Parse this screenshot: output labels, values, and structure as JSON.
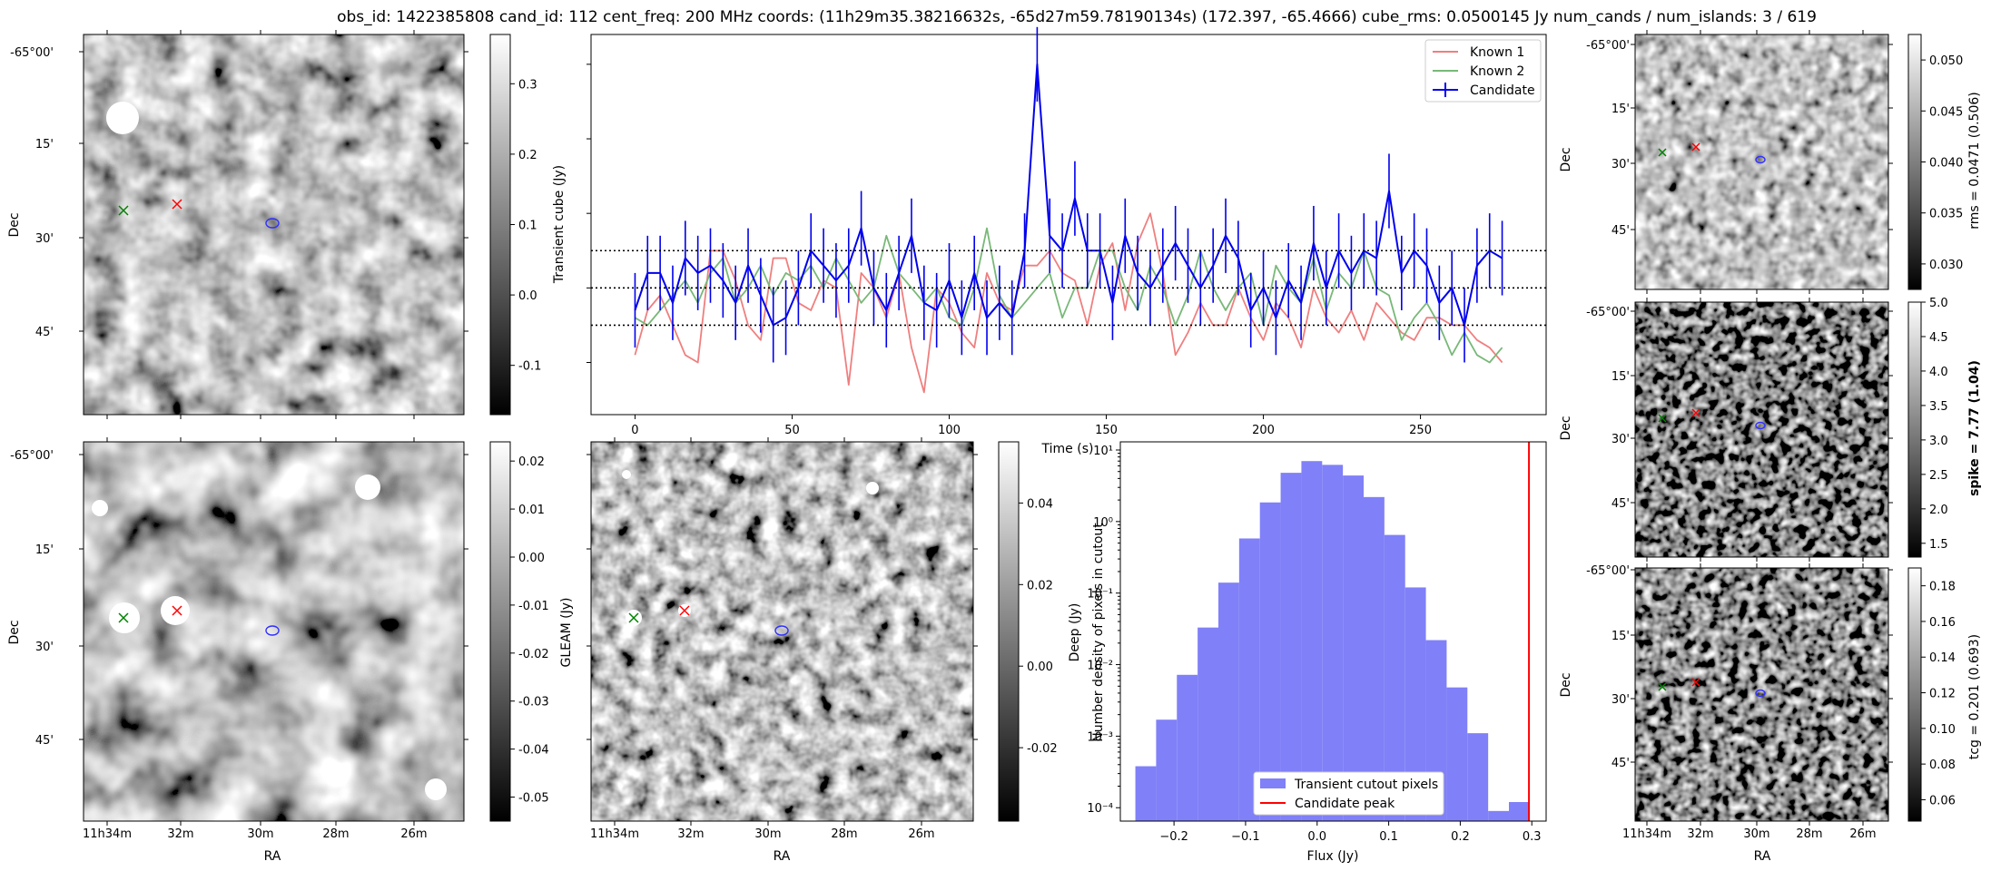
{
  "title": "obs_id: 1422385808 cand_id: 112 cent_freq: 200 MHz coords: (11h29m35.38216632s, -65d27m59.78190134s) (172.397, -65.4666) cube_rms: 0.0500145 Jy num_cands / num_islands: 3 / 619",
  "colors": {
    "known1": "#ef7f7f",
    "known2": "#78b878",
    "candidate": "#0000ee",
    "hist": "#8080f8",
    "peak": "#ff0000"
  },
  "sky_axes": {
    "dec_ticks": [
      "-65°00'",
      "15'",
      "30'",
      "45'"
    ],
    "ra_ticks": [
      "11h34m",
      "32m",
      "30m",
      "28m",
      "26m"
    ],
    "xlabel": "RA",
    "ylabel": "Dec"
  },
  "images": [
    {
      "name": "transient-cube-image",
      "cbar_label": "Transient cube (Jy)",
      "cbar_ticks": [
        "0.3",
        "0.2",
        "0.1",
        "0.0",
        "-0.1"
      ],
      "cbar_values": [
        0.3,
        0.2,
        0.1,
        0.0,
        -0.1
      ],
      "cbar_range": [
        -0.17,
        0.37
      ],
      "bold": false
    },
    {
      "name": "gleam-image",
      "cbar_label": "GLEAM (Jy)",
      "cbar_ticks": [
        "0.02",
        "0.01",
        "0.00",
        "-0.01",
        "-0.02",
        "-0.03",
        "-0.04",
        "-0.05"
      ],
      "cbar_values": [
        0.02,
        0.01,
        0.0,
        -0.01,
        -0.02,
        -0.03,
        -0.04,
        -0.05
      ],
      "cbar_range": [
        -0.055,
        0.024
      ],
      "bold": false
    },
    {
      "name": "deep-image",
      "cbar_label": "Deep (Jy)",
      "cbar_ticks": [
        "0.04",
        "0.02",
        "0.00",
        "-0.02"
      ],
      "cbar_values": [
        0.04,
        0.02,
        0.0,
        -0.02
      ],
      "cbar_range": [
        -0.038,
        0.055
      ],
      "bold": false
    },
    {
      "name": "rms-image",
      "cbar_label": "rms = 0.0471 (0.506)",
      "cbar_ticks": [
        "0.050",
        "0.045",
        "0.040",
        "0.035",
        "0.030"
      ],
      "cbar_values": [
        0.05,
        0.045,
        0.04,
        0.035,
        0.03
      ],
      "cbar_range": [
        0.0275,
        0.0525
      ],
      "bold": false
    },
    {
      "name": "spike-image",
      "cbar_label": "spike = 7.77 (1.04)",
      "cbar_ticks": [
        "5.0",
        "4.5",
        "4.0",
        "3.5",
        "3.0",
        "2.5",
        "2.0",
        "1.5"
      ],
      "cbar_values": [
        5.0,
        4.5,
        4.0,
        3.5,
        3.0,
        2.5,
        2.0,
        1.5
      ],
      "cbar_range": [
        1.3,
        5.0
      ],
      "bold": true
    },
    {
      "name": "tcg-image",
      "cbar_label": "tcg = 0.201 (0.693)",
      "cbar_ticks": [
        "0.18",
        "0.16",
        "0.14",
        "0.12",
        "0.10",
        "0.08",
        "0.06"
      ],
      "cbar_values": [
        0.18,
        0.16,
        0.14,
        0.12,
        0.1,
        0.08,
        0.06
      ],
      "cbar_range": [
        0.048,
        0.19
      ],
      "bold": false
    }
  ],
  "chart_data": [
    {
      "type": "line",
      "name": "lightcurve",
      "xlabel": "Time (s)",
      "ylabel": "",
      "xlim": [
        -14,
        290
      ],
      "ylim": [
        -0.17,
        0.34
      ],
      "xticks": [
        0,
        50,
        100,
        150,
        200,
        250
      ],
      "hlines": [
        -0.05,
        0.0,
        0.05
      ],
      "legend": [
        "Known 1",
        "Known 2",
        "Candidate"
      ],
      "legend_position": "top-right",
      "x": [
        0,
        4,
        8,
        12,
        16,
        20,
        24,
        28,
        32,
        36,
        40,
        44,
        48,
        52,
        56,
        60,
        64,
        68,
        72,
        76,
        80,
        84,
        88,
        92,
        96,
        100,
        104,
        108,
        112,
        116,
        120,
        124,
        128,
        132,
        136,
        140,
        144,
        148,
        152,
        156,
        160,
        164,
        168,
        172,
        176,
        180,
        184,
        188,
        192,
        196,
        200,
        204,
        208,
        212,
        216,
        220,
        224,
        228,
        232,
        236,
        240,
        244,
        248,
        252,
        256,
        260,
        264,
        268,
        272,
        276
      ],
      "series": [
        {
          "name": "Known 1",
          "values": [
            -0.09,
            -0.03,
            -0.01,
            -0.05,
            -0.09,
            -0.1,
            0.05,
            0.05,
            0.01,
            -0.05,
            -0.07,
            0.04,
            0.04,
            -0.02,
            -0.03,
            0.01,
            0.0,
            -0.13,
            0.02,
            0.0,
            -0.04,
            0.02,
            -0.08,
            -0.14,
            0.0,
            -0.02,
            -0.06,
            -0.08,
            0.02,
            -0.02,
            -0.03,
            0.03,
            0.03,
            0.05,
            0.02,
            0.01,
            -0.05,
            0.03,
            0.06,
            -0.03,
            0.06,
            0.1,
            0.02,
            -0.09,
            -0.06,
            -0.02,
            -0.05,
            -0.05,
            0.0,
            -0.04,
            -0.07,
            -0.02,
            -0.04,
            -0.08,
            0.0,
            -0.04,
            -0.06,
            -0.03,
            -0.07,
            -0.02,
            -0.04,
            -0.06,
            -0.07,
            -0.04,
            -0.04,
            -0.05,
            -0.05,
            -0.07,
            -0.08,
            -0.1
          ]
        },
        {
          "name": "Known 2",
          "values": [
            -0.04,
            -0.05,
            -0.03,
            -0.01,
            0.01,
            -0.02,
            0.02,
            0.04,
            -0.02,
            0.0,
            0.03,
            -0.01,
            0.02,
            0.01,
            0.03,
            0.0,
            0.04,
            0.01,
            -0.02,
            0.0,
            0.07,
            0.02,
            0.0,
            -0.02,
            0.0,
            -0.04,
            -0.05,
            0.0,
            0.08,
            -0.01,
            -0.04,
            -0.02,
            0.0,
            0.02,
            -0.04,
            0.0,
            0.0,
            0.05,
            0.05,
            0.0,
            -0.03,
            0.03,
            0.0,
            -0.05,
            -0.01,
            0.05,
            0.0,
            -0.03,
            0.0,
            0.02,
            -0.05,
            0.03,
            0.0,
            -0.02,
            0.04,
            -0.03,
            0.02,
            0.0,
            0.05,
            0.0,
            -0.01,
            -0.07,
            -0.04,
            -0.02,
            -0.05,
            -0.09,
            -0.06,
            -0.09,
            -0.1,
            -0.08
          ]
        },
        {
          "name": "Candidate",
          "values": [
            -0.03,
            0.02,
            0.02,
            -0.02,
            0.04,
            0.02,
            0.03,
            0.01,
            -0.02,
            0.03,
            -0.01,
            -0.05,
            -0.04,
            0.0,
            0.05,
            0.03,
            0.01,
            0.03,
            0.08,
            0.0,
            -0.03,
            0.02,
            0.07,
            -0.02,
            -0.03,
            0.01,
            -0.04,
            0.02,
            -0.04,
            -0.02,
            -0.04,
            0.05,
            0.3,
            0.07,
            0.05,
            0.12,
            0.05,
            0.05,
            -0.02,
            0.07,
            0.02,
            0.0,
            0.03,
            0.06,
            0.03,
            0.0,
            0.03,
            0.07,
            0.04,
            -0.03,
            0.0,
            -0.04,
            0.01,
            -0.02,
            0.06,
            0.0,
            0.05,
            0.02,
            0.05,
            0.04,
            0.13,
            0.02,
            0.05,
            0.03,
            -0.02,
            0.0,
            -0.05,
            0.03,
            0.05,
            0.04
          ],
          "error": 0.05
        }
      ]
    },
    {
      "type": "bar",
      "name": "flux-histogram",
      "xlabel": "Flux (Jy)",
      "ylabel": "Number density of pixels in cutout",
      "yscale": "log",
      "xlim": [
        -0.275,
        0.32
      ],
      "ylim": [
        6.5e-05,
        13
      ],
      "xticks": [
        -0.2,
        -0.1,
        0.0,
        0.1,
        0.2,
        0.3
      ],
      "xtick_labels": [
        "−0.2",
        "−0.1",
        "0.0",
        "0.1",
        "0.2",
        "0.3"
      ],
      "yticks": [
        "10⁻⁴",
        "10⁻³",
        "10⁻²",
        "10⁻¹",
        "10⁰",
        "10¹"
      ],
      "bin_edges": [
        -0.254,
        -0.225,
        -0.196,
        -0.167,
        -0.138,
        -0.109,
        -0.08,
        -0.051,
        -0.022,
        0.007,
        0.036,
        0.065,
        0.094,
        0.123,
        0.152,
        0.181,
        0.21,
        0.239,
        0.268,
        0.297
      ],
      "values": [
        0.00038,
        0.0017,
        0.0072,
        0.033,
        0.14,
        0.58,
        1.85,
        4.8,
        7.0,
        6.2,
        4.4,
        2.2,
        0.65,
        0.12,
        0.022,
        0.0048,
        0.0011,
        9e-05,
        0.00012
      ],
      "candidate_peak": 0.296,
      "legend": [
        "Transient cutout pixels",
        "Candidate peak"
      ],
      "legend_position": "bottom-center"
    }
  ]
}
